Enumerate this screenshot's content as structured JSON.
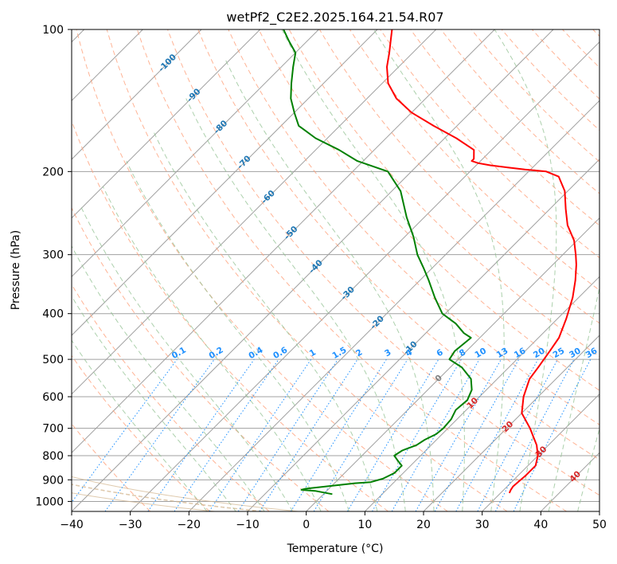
{
  "chart_data": {
    "type": "line",
    "title": "wetPf2_C2E2.2025.164.21.54.R07",
    "xlabel": "Temperature (°C)",
    "ylabel": "Pressure (hPa)",
    "xlim": [
      -40,
      50
    ],
    "ylim": [
      1050,
      100
    ],
    "y_scale": "log",
    "skew": true,
    "x_ticks": [
      "−40",
      "−30",
      "−20",
      "−10",
      "0",
      "10",
      "20",
      "30",
      "40",
      "50"
    ],
    "y_ticks": [
      "100",
      "200",
      "300",
      "400",
      "500",
      "600",
      "700",
      "800",
      "900",
      "1000"
    ],
    "x_tick_values": [
      -40,
      -30,
      -20,
      -10,
      0,
      10,
      20,
      30,
      40,
      50
    ],
    "y_tick_values": [
      100,
      200,
      300,
      400,
      500,
      600,
      700,
      800,
      900,
      1000
    ],
    "grid": true,
    "colors": {
      "temperature": "#ff0000",
      "dewpoint": "#008000",
      "isotherm": "#a0a0a0",
      "dry_adiabat": "#ffa07a",
      "moist_adiabat": "#90c090",
      "mixing_ratio": "#1e90ff",
      "mixing_label": "#1e90ff",
      "isotherm_label": "#1f77b4",
      "warm_label": "#d62728",
      "freezing_label": "#808080",
      "other_curve": "#d2b48c"
    },
    "series": [
      {
        "key": "temperature",
        "x": [
          31.5,
          31.2,
          31.0,
          31.1,
          31.3,
          31.3,
          30.0,
          28.0,
          24.0,
          20.0,
          17.5,
          15.5,
          15.0,
          14.2,
          13.5,
          11.5,
          9.0,
          6.5,
          4.0,
          2.2,
          -0.5,
          -4.2,
          -7.3,
          -10.5,
          -14.0,
          -17.0,
          -21.0,
          -24.4,
          -27.6,
          -30.0,
          -31.5,
          -31.5,
          -33.0,
          -38.0,
          -44.0,
          -50.0,
          -55.0,
          -59.0,
          -62.0,
          -64.0,
          -66.0,
          -67.5
        ],
        "y": [
          960,
          945,
          930,
          910,
          880,
          840,
          800,
          760,
          700,
          650,
          600,
          550,
          520,
          480,
          450,
          410,
          370,
          340,
          315,
          300,
          280,
          260,
          240,
          220,
          205,
          200,
          198,
          196,
          194,
          192,
          190,
          188,
          180,
          170,
          160,
          150,
          140,
          130,
          120,
          112,
          105,
          100
        ]
      },
      {
        "key": "dewpoint",
        "x": [
          1.5,
          -2.0,
          -4.5,
          -4.0,
          0.5,
          3.5,
          6.0,
          7.5,
          8.5,
          8.5,
          7.0,
          5.5,
          6.0,
          7.5,
          8.0,
          9.0,
          9.2,
          9.0,
          8.2,
          8.5,
          7.5,
          5.5,
          2.0,
          -1.5,
          -2.0,
          -1.5,
          -3.5,
          -6.5,
          -10.5,
          -14.5,
          -18.5,
          -21.5,
          -24.8,
          -28.5,
          -33.0,
          -38.5,
          -44.0,
          -51.0,
          -56.0,
          -62.0,
          -67.0,
          -70.0,
          -73.0,
          -75.5,
          -78.0,
          -80.0,
          -83.0,
          -86.0
        ],
        "y": [
          965,
          950,
          945,
          940,
          925,
          915,
          910,
          895,
          870,
          840,
          820,
          800,
          780,
          760,
          740,
          720,
          700,
          670,
          640,
          610,
          580,
          550,
          520,
          500,
          480,
          450,
          440,
          420,
          400,
          370,
          340,
          320,
          300,
          275,
          250,
          220,
          200,
          190,
          180,
          170,
          160,
          150,
          140,
          130,
          120,
          112,
          106,
          100
        ]
      }
    ],
    "isotherm_labels": [
      "-100",
      "-90",
      "-80",
      "-70",
      "-60",
      "-50",
      "-40",
      "-30",
      "-20",
      "-10",
      "0",
      "10",
      "20",
      "30",
      "40"
    ],
    "isotherm_label_values": [
      -100,
      -90,
      -80,
      -70,
      -60,
      -50,
      -40,
      -30,
      -20,
      -10,
      0,
      10,
      20,
      30,
      40
    ],
    "mixing_ratio_labels": [
      "0.1",
      "0.2",
      "0.4",
      "0.6",
      "1",
      "1.5",
      "2",
      "3",
      "4",
      "6",
      "8",
      "10",
      "13",
      "16",
      "20",
      "25",
      "30",
      "36"
    ],
    "mixing_ratio_values": [
      0.1,
      0.2,
      0.4,
      0.6,
      1,
      1.5,
      2,
      3,
      4,
      6,
      8,
      10,
      13,
      16,
      20,
      25,
      30,
      36
    ]
  }
}
